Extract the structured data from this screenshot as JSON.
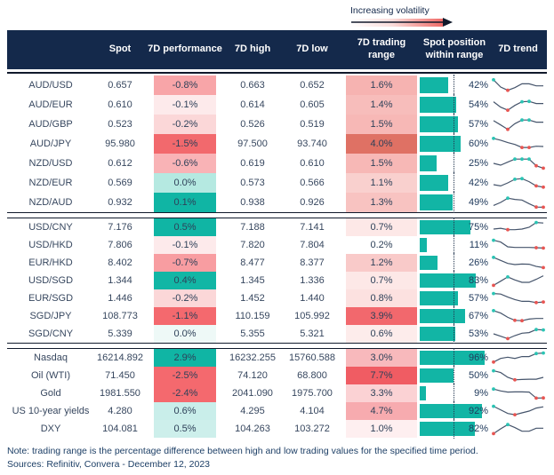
{
  "legend": {
    "label": "Increasing volatility"
  },
  "chart_data": {
    "type": "table",
    "columns": [
      "",
      "Spot",
      "7D performance",
      "7D high",
      "7D low",
      "7D trading range",
      "Spot position within range",
      "7D trend"
    ],
    "sections": [
      {
        "rows": [
          {
            "name": "AUD/USD",
            "spot": "0.657",
            "performance": "-0.8%",
            "perf_color": "#F8A5A8",
            "high": "0.663",
            "low": "0.652",
            "range": "1.6%",
            "range_color": "#F6B3B1",
            "position_pct": 42,
            "spark": {
              "y": [
                0.95,
                0.35,
                0.08,
                0.3,
                0.62,
                0.62,
                0.45,
                0.45
              ],
              "hi": [
                0
              ],
              "lo": [
                2
              ]
            }
          },
          {
            "name": "AUD/EUR",
            "spot": "0.610",
            "performance": "-0.1%",
            "perf_color": "#FDEAEB",
            "high": "0.614",
            "low": "0.605",
            "range": "1.4%",
            "range_color": "#F7BDBB",
            "position_pct": 54,
            "spark": {
              "y": [
                0.75,
                0.3,
                0.05,
                0.45,
                0.75,
                0.78,
                0.6,
                0.6
              ],
              "hi": [
                4,
                5
              ],
              "lo": [
                2
              ]
            }
          },
          {
            "name": "AUD/GBP",
            "spot": "0.523",
            "performance": "-0.2%",
            "perf_color": "#FBD7D8",
            "high": "0.526",
            "low": "0.519",
            "range": "1.5%",
            "range_color": "#F7B8B6",
            "position_pct": 57,
            "spark": {
              "y": [
                0.8,
                0.45,
                0.08,
                0.55,
                0.85,
                0.85,
                0.68,
                0.68
              ],
              "hi": [
                4,
                5
              ],
              "lo": [
                2
              ]
            }
          },
          {
            "name": "AUD/JPY",
            "spot": "95.980",
            "performance": "-1.5%",
            "perf_color": "#F2696D",
            "high": "97.500",
            "low": "93.740",
            "range": "4.0%",
            "range_color": "#DF7164",
            "position_pct": 60,
            "spark": {
              "y": [
                0.95,
                0.8,
                0.6,
                0.45,
                0.2,
                0.2,
                0.3,
                0.28
              ],
              "hi": [
                0
              ],
              "lo": [
                4,
                5
              ]
            }
          },
          {
            "name": "NZD/USD",
            "spot": "0.612",
            "performance": "-0.6%",
            "perf_color": "#F9B3B6",
            "high": "0.619",
            "low": "0.610",
            "range": "1.5%",
            "range_color": "#F7B8B6",
            "position_pct": 25,
            "spark": {
              "y": [
                0.5,
                0.35,
                0.6,
                0.85,
                0.85,
                0.85,
                0.3,
                0.1
              ],
              "hi": [
                3,
                4,
                5
              ],
              "lo": [
                6,
                7
              ]
            }
          },
          {
            "name": "NZD/EUR",
            "spot": "0.569",
            "performance": "0.0%",
            "perf_color": "#B5E9E1",
            "high": "0.573",
            "low": "0.566",
            "range": "1.1%",
            "range_color": "#F9D0CE",
            "position_pct": 42,
            "spark": {
              "y": [
                0.35,
                0.25,
                0.5,
                0.8,
                0.85,
                0.6,
                0.25,
                0.15
              ],
              "hi": [
                3,
                4
              ],
              "lo": [
                6,
                7
              ]
            }
          },
          {
            "name": "NZD/AUD",
            "spot": "0.932",
            "performance": "0.1%",
            "perf_color": "#10B5A4",
            "high": "0.938",
            "low": "0.926",
            "range": "1.3%",
            "range_color": "#F8C3C1",
            "position_pct": 49,
            "spark": {
              "y": [
                0.25,
                0.5,
                0.85,
                0.75,
                0.7,
                0.4,
                0.12,
                0.1
              ],
              "hi": [
                2
              ],
              "lo": [
                6,
                7
              ]
            }
          }
        ]
      },
      {
        "rows": [
          {
            "name": "USD/CNY",
            "spot": "7.176",
            "performance": "0.5%",
            "perf_color": "#10B5A4",
            "high": "7.188",
            "low": "7.141",
            "range": "0.7%",
            "range_color": "#FDE8E7",
            "position_pct": 75,
            "spark": {
              "y": [
                0.35,
                0.42,
                0.3,
                0.3,
                0.35,
                0.5,
                0.9,
                0.85
              ],
              "hi": [
                6
              ],
              "lo": [
                2
              ]
            }
          },
          {
            "name": "USD/HKD",
            "spot": "7.806",
            "performance": "-0.1%",
            "perf_color": "#FDEAEB",
            "high": "7.820",
            "low": "7.804",
            "range": "0.2%",
            "range_color": "#FFFFFF",
            "position_pct": 11,
            "spark": {
              "y": [
                0.9,
                0.75,
                0.35,
                0.3,
                0.3,
                0.3,
                0.28,
                0.25
              ],
              "hi": [
                0
              ],
              "lo": [
                6,
                7
              ]
            }
          },
          {
            "name": "EUR/HKD",
            "spot": "8.402",
            "performance": "-0.7%",
            "perf_color": "#F89DA1",
            "high": "8.477",
            "low": "8.377",
            "range": "1.2%",
            "range_color": "#F9CAC9",
            "position_pct": 26,
            "spark": {
              "y": [
                0.95,
                0.7,
                0.45,
                0.35,
                0.4,
                0.38,
                0.2,
                0.1
              ],
              "hi": [
                0
              ],
              "lo": [
                7
              ]
            }
          },
          {
            "name": "USD/SGD",
            "spot": "1.344",
            "performance": "0.4%",
            "perf_color": "#12B6A5",
            "high": "1.345",
            "low": "1.336",
            "range": "0.7%",
            "range_color": "#FDE8E7",
            "position_pct": 83,
            "spark": {
              "y": [
                0.1,
                0.45,
                0.8,
                0.55,
                0.35,
                0.35,
                0.6,
                0.9
              ],
              "hi": [
                2
              ],
              "lo": [
                0
              ]
            }
          },
          {
            "name": "EUR/SGD",
            "spot": "1.446",
            "performance": "-0.2%",
            "perf_color": "#FBD7D8",
            "high": "1.452",
            "low": "1.440",
            "range": "0.8%",
            "range_color": "#FCE1E0",
            "position_pct": 57,
            "spark": {
              "y": [
                0.9,
                0.85,
                0.6,
                0.4,
                0.25,
                0.25,
                0.15,
                0.2
              ],
              "hi": [
                0
              ],
              "lo": [
                6,
                7
              ]
            }
          },
          {
            "name": "SGD/JPY",
            "spot": "108.773",
            "performance": "-1.1%",
            "perf_color": "#F4696E",
            "high": "110.159",
            "low": "105.992",
            "range": "3.9%",
            "range_color": "#F2686D",
            "position_pct": 67,
            "spark": {
              "y": [
                0.95,
                0.75,
                0.4,
                0.15,
                0.12,
                0.25,
                0.3,
                0.3
              ],
              "hi": [
                0
              ],
              "lo": [
                3,
                4
              ]
            }
          },
          {
            "name": "SGD/CNY",
            "spot": "5.339",
            "performance": "0.0%",
            "perf_color": "#EEF9F7",
            "high": "5.355",
            "low": "5.321",
            "range": "0.6%",
            "range_color": "#FDECEB",
            "position_pct": 53,
            "spark": {
              "y": [
                0.5,
                0.3,
                0.1,
                0.35,
                0.55,
                0.6,
                0.85,
                0.82
              ],
              "hi": [
                6,
                7
              ],
              "lo": [
                2
              ]
            }
          }
        ]
      },
      {
        "rows": [
          {
            "name": "Nasdaq",
            "spot": "16214.892",
            "performance": "2.9%",
            "perf_color": "#10B5A4",
            "high": "16232.255",
            "low": "15760.588",
            "range": "3.0%",
            "range_color": "#F8B9BC",
            "position_pct": 96,
            "spark": {
              "y": [
                0.15,
                0.45,
                0.55,
                0.45,
                0.6,
                0.6,
                0.85,
                0.9
              ],
              "hi": [
                6,
                7
              ],
              "lo": [
                0
              ]
            }
          },
          {
            "name": "Oil (WTI)",
            "spot": "71.450",
            "performance": "-2.5%",
            "perf_color": "#F4696E",
            "high": "74.120",
            "low": "68.800",
            "range": "7.7%",
            "range_color": "#F05C63",
            "position_pct": 50,
            "spark": {
              "y": [
                0.9,
                0.75,
                0.35,
                0.15,
                0.18,
                0.2,
                0.2,
                0.35
              ],
              "hi": [
                0
              ],
              "lo": [
                3
              ]
            }
          },
          {
            "name": "Gold",
            "spot": "1981.550",
            "performance": "-2.4%",
            "perf_color": "#F4696E",
            "high": "2041.090",
            "low": "1975.700",
            "range": "3.3%",
            "range_color": "#FBD2D4",
            "position_pct": 9,
            "spark": {
              "y": [
                0.85,
                0.7,
                0.6,
                0.62,
                0.62,
                0.6,
                0.1,
                0.12
              ],
              "hi": [
                0
              ],
              "lo": [
                6,
                7
              ]
            }
          },
          {
            "name": "US 10-year yields",
            "spot": "4.280",
            "performance": "0.6%",
            "perf_color": "#C9EEEA",
            "high": "4.295",
            "low": "4.104",
            "range": "4.7%",
            "range_color": "#F7ABAF",
            "position_pct": 92,
            "spark": {
              "y": [
                0.9,
                0.6,
                0.3,
                0.2,
                0.35,
                0.5,
                0.75,
                0.85
              ],
              "hi": [
                0
              ],
              "lo": [
                3
              ]
            }
          },
          {
            "name": "DXY",
            "spot": "104.081",
            "performance": "0.5%",
            "perf_color": "#CDEFEB",
            "high": "104.263",
            "low": "103.272",
            "range": "1.0%",
            "range_color": "#FEEFF0",
            "position_pct": 82,
            "spark": {
              "y": [
                0.1,
                0.5,
                0.85,
                0.6,
                0.3,
                0.3,
                0.55,
                0.55
              ],
              "hi": [
                2
              ],
              "lo": [
                0
              ]
            }
          }
        ]
      }
    ]
  },
  "colors": {
    "header_bg": "#14294B",
    "bar_teal": "#12B5A5",
    "spark_line": "#45546B",
    "spark_high_dot": "#2BC4B4",
    "spark_low_dot": "#E85552",
    "strong_red": "#F4696E",
    "strong_teal": "#10B5A4"
  },
  "footer": {
    "note": "Note: trading range is the percentage difference between high and low trading values for the specified time period.",
    "sources": "Sources: Refinitiv, Convera - December 12, 2023"
  }
}
